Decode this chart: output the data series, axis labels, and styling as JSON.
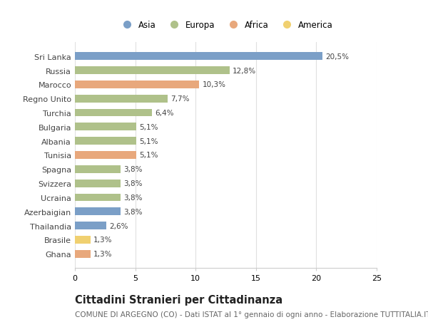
{
  "categories": [
    "Sri Lanka",
    "Russia",
    "Marocco",
    "Regno Unito",
    "Turchia",
    "Bulgaria",
    "Albania",
    "Tunisia",
    "Spagna",
    "Svizzera",
    "Ucraina",
    "Azerbaigian",
    "Thailandia",
    "Brasile",
    "Ghana"
  ],
  "values": [
    20.5,
    12.8,
    10.3,
    7.7,
    6.4,
    5.1,
    5.1,
    5.1,
    3.8,
    3.8,
    3.8,
    3.8,
    2.6,
    1.3,
    1.3
  ],
  "labels": [
    "20,5%",
    "12,8%",
    "10,3%",
    "7,7%",
    "6,4%",
    "5,1%",
    "5,1%",
    "5,1%",
    "3,8%",
    "3,8%",
    "3,8%",
    "3,8%",
    "2,6%",
    "1,3%",
    "1,3%"
  ],
  "colors": [
    "#7b9fc7",
    "#afc18a",
    "#e8a87c",
    "#afc18a",
    "#afc18a",
    "#afc18a",
    "#afc18a",
    "#e8a87c",
    "#afc18a",
    "#afc18a",
    "#afc18a",
    "#7b9fc7",
    "#7b9fc7",
    "#f0d070",
    "#e8a87c"
  ],
  "legend": [
    {
      "label": "Asia",
      "color": "#7b9fc7"
    },
    {
      "label": "Europa",
      "color": "#afc18a"
    },
    {
      "label": "Africa",
      "color": "#e8a87c"
    },
    {
      "label": "America",
      "color": "#f0d070"
    }
  ],
  "title": "Cittadini Stranieri per Cittadinanza",
  "subtitle": "COMUNE DI ARGEGNO (CO) - Dati ISTAT al 1° gennaio di ogni anno - Elaborazione TUTTITALIA.IT",
  "xlim": [
    0,
    25
  ],
  "xticks": [
    0,
    5,
    10,
    15,
    20,
    25
  ],
  "fig_background": "#ffffff",
  "plot_background": "#ffffff",
  "grid_color": "#e0e0e0",
  "label_fontsize": 7.5,
  "ytick_fontsize": 8,
  "xtick_fontsize": 8,
  "title_fontsize": 10.5,
  "subtitle_fontsize": 7.5,
  "legend_fontsize": 8.5,
  "bar_height": 0.55
}
